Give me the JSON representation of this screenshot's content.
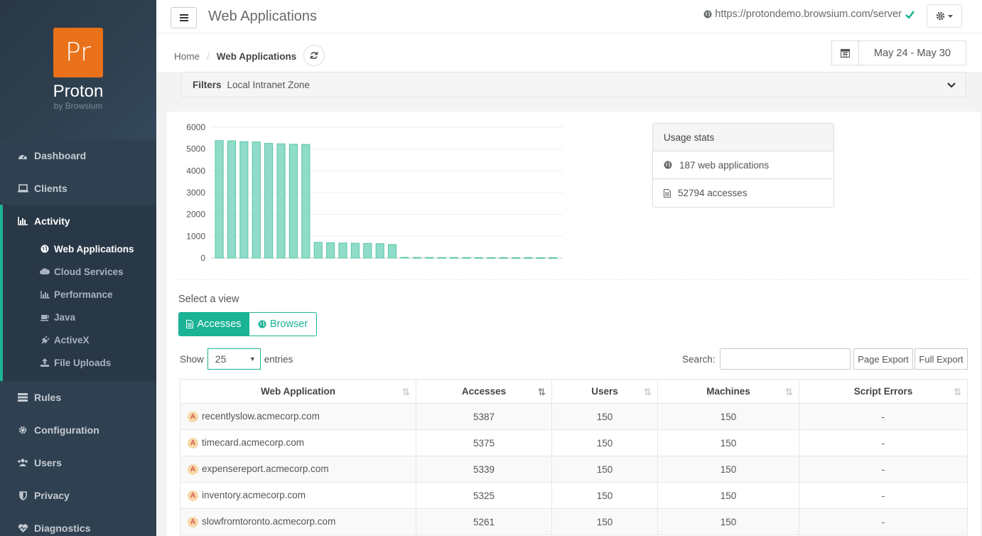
{
  "brand": {
    "logo": "Pr",
    "name": "Proton",
    "sub": "by Browsium"
  },
  "sidebar": {
    "items": [
      {
        "label": "Dashboard",
        "icon": "dashboard-icon"
      },
      {
        "label": "Clients",
        "icon": "laptop-icon"
      },
      {
        "label": "Activity",
        "icon": "bar-chart-icon"
      },
      {
        "label": "Rules",
        "icon": "server-icon"
      },
      {
        "label": "Configuration",
        "icon": "gear-icon"
      },
      {
        "label": "Users",
        "icon": "users-icon"
      },
      {
        "label": "Privacy",
        "icon": "shield-icon"
      },
      {
        "label": "Diagnostics",
        "icon": "heartbeat-icon"
      }
    ],
    "activity_sub": [
      {
        "label": "Web Applications",
        "icon": "globe-icon"
      },
      {
        "label": "Cloud Services",
        "icon": "cloud-icon"
      },
      {
        "label": "Performance",
        "icon": "bar-chart-icon"
      },
      {
        "label": "Java",
        "icon": "coffee-icon"
      },
      {
        "label": "ActiveX",
        "icon": "plug-icon"
      },
      {
        "label": "File Uploads",
        "icon": "upload-icon"
      }
    ]
  },
  "header": {
    "title": "Web Applications",
    "server_url": "https://protondemo.browsium.com/server"
  },
  "breadcrumb": {
    "home": "Home",
    "sep": "/",
    "current": "Web Applications"
  },
  "date_range": "May 24 - May 30",
  "filters": {
    "label": "Filters",
    "value": "Local Intranet Zone"
  },
  "chart_data": {
    "type": "bar",
    "title": "",
    "xlabel": "",
    "ylabel": "",
    "ylim": [
      0,
      6000
    ],
    "yticks": [
      "6000",
      "5000",
      "4000",
      "3000",
      "2000",
      "1000",
      "0"
    ],
    "values": [
      5387,
      5375,
      5339,
      5325,
      5261,
      5240,
      5220,
      5210,
      720,
      700,
      690,
      680,
      670,
      660,
      620,
      30,
      28,
      26,
      25,
      24,
      23,
      22,
      21,
      20,
      19,
      18,
      17,
      16
    ],
    "color": "#8fdcc8",
    "stroke": "#59c4a8"
  },
  "usage": {
    "title": "Usage stats",
    "web_apps": "187 web applications",
    "accesses": "52794 accesses"
  },
  "view": {
    "label": "Select a view",
    "accesses_btn": "Accesses",
    "browser_btn": "Browser"
  },
  "table_controls": {
    "show": "Show",
    "entries_value": "25",
    "entries": "entries",
    "search": "Search:",
    "page_export": "Page Export",
    "full_export": "Full Export"
  },
  "table": {
    "headers": [
      "Web Application",
      "Accesses",
      "Users",
      "Machines",
      "Script Errors"
    ],
    "rows": [
      [
        "recentlyslow.acmecorp.com",
        "5387",
        "150",
        "150",
        "-"
      ],
      [
        "timecard.acmecorp.com",
        "5375",
        "150",
        "150",
        "-"
      ],
      [
        "expensereport.acmecorp.com",
        "5339",
        "150",
        "150",
        "-"
      ],
      [
        "inventory.acmecorp.com",
        "5325",
        "150",
        "150",
        "-"
      ],
      [
        "slowfromtoronto.acmecorp.com",
        "5261",
        "150",
        "150",
        "-"
      ]
    ]
  },
  "colors": {
    "accent": "#1ab394",
    "sidebar": "#2f4050",
    "brand_orange": "#e8711a"
  }
}
